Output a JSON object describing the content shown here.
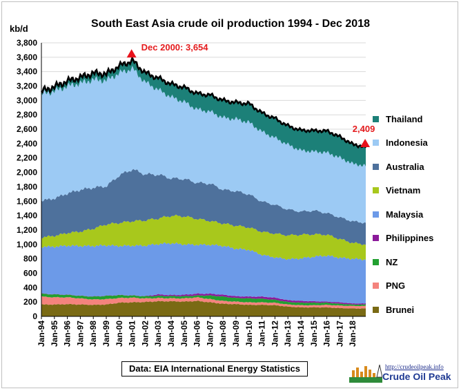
{
  "chart_data": {
    "type": "area",
    "title": "South East Asia crude oil production 1994 - Dec 2018",
    "ylabel": "kb/d",
    "xlabel": "",
    "ylim": [
      0,
      3800
    ],
    "yticks": [
      0,
      200,
      400,
      600,
      800,
      1000,
      1200,
      1400,
      1600,
      1800,
      2000,
      2200,
      2400,
      2600,
      2800,
      3000,
      3200,
      3400,
      3600,
      3800
    ],
    "ytick_labels": [
      "0",
      "200",
      "400",
      "600",
      "800",
      "1,000",
      "1,200",
      "1,400",
      "1,600",
      "1,800",
      "2,000",
      "2,200",
      "2,400",
      "2,600",
      "2,800",
      "3,000",
      "3,200",
      "3,400",
      "3,600",
      "3,800"
    ],
    "x_tick_labels": [
      "Jan-94",
      "Jan-95",
      "Jan-96",
      "Jan-97",
      "Jan-98",
      "Jan-99",
      "Jan-00",
      "Jan-01",
      "Jan-02",
      "Jan-03",
      "Jan-04",
      "Jan-05",
      "Jan-06",
      "Jan-07",
      "Jan-08",
      "Jan-09",
      "Jan-10",
      "Jan-11",
      "Jan-12",
      "Jan-13",
      "Jan-14",
      "Jan-15",
      "Jan-16",
      "Jan-17",
      "Jan-18"
    ],
    "x_year_points": [
      1994,
      1995,
      1996,
      1997,
      1998,
      1999,
      2000,
      2001,
      2002,
      2003,
      2004,
      2005,
      2006,
      2007,
      2008,
      2009,
      2010,
      2011,
      2012,
      2013,
      2014,
      2015,
      2016,
      2017,
      2018,
      2019
    ],
    "legend_placement": "right",
    "grid": "horizontal",
    "series": [
      {
        "name": "Brunei",
        "color": "#7a6a14",
        "values": [
          165,
          165,
          170,
          165,
          160,
          165,
          190,
          195,
          200,
          210,
          210,
          205,
          215,
          195,
          175,
          170,
          160,
          160,
          155,
          135,
          125,
          125,
          125,
          115,
          110,
          110
        ]
      },
      {
        "name": "PNG",
        "color": "#f4837d",
        "values": [
          110,
          100,
          95,
          85,
          75,
          75,
          65,
          65,
          50,
          45,
          42,
          45,
          50,
          45,
          40,
          35,
          35,
          35,
          35,
          30,
          30,
          30,
          35,
          35,
          35,
          35
        ]
      },
      {
        "name": "NZ",
        "color": "#22a030",
        "values": [
          40,
          40,
          35,
          35,
          40,
          45,
          40,
          30,
          30,
          30,
          30,
          30,
          25,
          50,
          60,
          50,
          55,
          50,
          40,
          35,
          35,
          35,
          30,
          25,
          20,
          20
        ]
      },
      {
        "name": "Philippines",
        "color": "#8b1a9a",
        "values": [
          3,
          3,
          3,
          3,
          3,
          3,
          3,
          3,
          3,
          20,
          15,
          20,
          25,
          25,
          25,
          25,
          25,
          30,
          30,
          25,
          25,
          20,
          15,
          20,
          15,
          15
        ]
      },
      {
        "name": "Malaysia",
        "color": "#6c9ae8",
        "values": [
          650,
          660,
          680,
          690,
          700,
          700,
          680,
          690,
          700,
          700,
          720,
          700,
          680,
          680,
          680,
          660,
          650,
          580,
          560,
          570,
          590,
          620,
          640,
          620,
          620,
          610
        ]
      },
      {
        "name": "Vietnam",
        "color": "#a8c81c",
        "values": [
          130,
          150,
          175,
          200,
          240,
          290,
          320,
          340,
          350,
          355,
          380,
          390,
          360,
          330,
          310,
          320,
          310,
          320,
          330,
          330,
          330,
          310,
          290,
          260,
          220,
          210
        ]
      },
      {
        "name": "Australia",
        "color": "#4e719c",
        "values": [
          510,
          520,
          550,
          580,
          570,
          530,
          660,
          720,
          640,
          610,
          520,
          520,
          500,
          520,
          470,
          480,
          460,
          420,
          400,
          360,
          320,
          330,
          300,
          300,
          300,
          300
        ]
      },
      {
        "name": "Indonesia",
        "color": "#9ccaf4",
        "values": [
          1480,
          1490,
          1490,
          1480,
          1500,
          1470,
          1420,
          1400,
          1280,
          1180,
          1130,
          1070,
          1020,
          1000,
          1000,
          1000,
          1000,
          970,
          930,
          900,
          850,
          820,
          840,
          830,
          800,
          790
        ]
      },
      {
        "name": "Thailand",
        "color": "#1c8078",
        "values": [
          40,
          60,
          70,
          80,
          90,
          90,
          100,
          110,
          130,
          160,
          180,
          200,
          220,
          230,
          240,
          230,
          260,
          260,
          270,
          260,
          280,
          290,
          300,
          290,
          270,
          260
        ]
      }
    ],
    "annotations": [
      {
        "text": "Dec 2000: 3,654",
        "x": 2000.95,
        "y": 3654
      },
      {
        "text": "2,409",
        "x": 2018.95,
        "y": 2409
      }
    ],
    "source": "Data: EIA International Energy Statistics"
  },
  "logo": {
    "url_text": "http://crudeoilpeak.info",
    "name": "Crude Oil Peak"
  }
}
